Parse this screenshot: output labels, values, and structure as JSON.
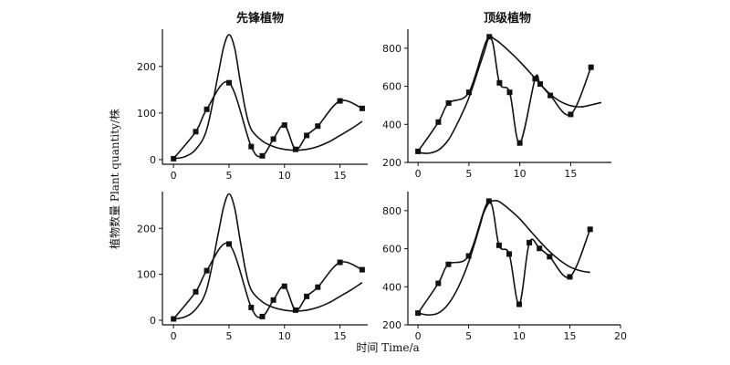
{
  "figure": {
    "ylabel": "植物数量  Plant quantity/株",
    "xlabel": "时间 Time/a"
  },
  "chart_data": [
    {
      "type": "line",
      "title": "先锋植物",
      "xlim": [
        -1,
        17.5
      ],
      "ylim": [
        -10,
        280
      ],
      "xticks": [
        0,
        5,
        10,
        15
      ],
      "yticks": [
        0,
        100,
        200
      ],
      "series": [
        {
          "style": "line-markers",
          "points": [
            [
              0,
              2
            ],
            [
              2,
              60
            ],
            [
              3,
              108
            ],
            [
              5,
              165
            ],
            [
              7,
              28
            ],
            [
              8,
              8
            ],
            [
              9,
              44
            ],
            [
              10,
              74
            ],
            [
              11,
              22
            ],
            [
              12,
              52
            ],
            [
              13,
              72
            ],
            [
              15,
              126
            ],
            [
              17,
              110
            ]
          ]
        },
        {
          "style": "smooth",
          "points": [
            [
              0,
              2
            ],
            [
              1,
              6
            ],
            [
              2,
              22
            ],
            [
              3,
              65
            ],
            [
              4,
              180
            ],
            [
              4.5,
              240
            ],
            [
              5,
              268
            ],
            [
              5.5,
              240
            ],
            [
              6,
              170
            ],
            [
              6.5,
              105
            ],
            [
              7,
              65
            ],
            [
              8,
              40
            ],
            [
              9,
              28
            ],
            [
              10,
              22
            ],
            [
              11,
              20
            ],
            [
              12,
              22
            ],
            [
              13,
              28
            ],
            [
              14,
              38
            ],
            [
              15,
              52
            ],
            [
              16,
              66
            ],
            [
              17,
              82
            ]
          ]
        }
      ]
    },
    {
      "type": "line",
      "title": "顶级植物",
      "xlim": [
        -1,
        19
      ],
      "ylim": [
        200,
        900
      ],
      "xticks": [
        0,
        5,
        10,
        15
      ],
      "yticks": [
        200,
        400,
        600,
        800
      ],
      "series": [
        {
          "style": "line-markers",
          "points": [
            [
              0,
              258
            ],
            [
              2,
              412
            ],
            [
              3,
              512
            ],
            [
              5,
              568
            ],
            [
              7,
              860
            ],
            [
              8,
              618
            ],
            [
              9,
              568
            ],
            [
              10,
              302
            ],
            [
              11.5,
              640
            ],
            [
              12,
              612
            ],
            [
              13,
              552
            ],
            [
              15,
              452
            ],
            [
              17,
              700
            ]
          ]
        },
        {
          "style": "smooth",
          "points": [
            [
              0,
              252
            ],
            [
              1,
              248
            ],
            [
              2,
              265
            ],
            [
              3,
              320
            ],
            [
              4,
              420
            ],
            [
              5,
              540
            ],
            [
              6,
              700
            ],
            [
              6.5,
              780
            ],
            [
              7,
              860
            ],
            [
              7.5,
              848
            ],
            [
              8,
              830
            ],
            [
              9,
              782
            ],
            [
              10,
              730
            ],
            [
              11,
              672
            ],
            [
              12,
              612
            ],
            [
              13,
              558
            ],
            [
              14,
              520
            ],
            [
              15,
              498
            ],
            [
              16,
              492
            ],
            [
              17,
              502
            ],
            [
              18,
              515
            ]
          ]
        }
      ]
    },
    {
      "type": "line",
      "title": "",
      "xlim": [
        -1,
        17.5
      ],
      "ylim": [
        -10,
        280
      ],
      "xticks": [
        0,
        5,
        10,
        15
      ],
      "yticks": [
        0,
        100,
        200
      ],
      "series": [
        {
          "style": "line-markers",
          "points": [
            [
              0,
              3
            ],
            [
              2,
              62
            ],
            [
              3,
              108
            ],
            [
              5,
              166
            ],
            [
              7,
              28
            ],
            [
              8,
              8
            ],
            [
              9,
              44
            ],
            [
              10,
              74
            ],
            [
              11,
              22
            ],
            [
              12,
              52
            ],
            [
              13,
              72
            ],
            [
              15,
              126
            ],
            [
              17,
              110
            ]
          ]
        },
        {
          "style": "smooth",
          "points": [
            [
              0,
              3
            ],
            [
              1,
              7
            ],
            [
              2,
              24
            ],
            [
              3,
              68
            ],
            [
              4,
              185
            ],
            [
              4.5,
              245
            ],
            [
              5,
              275
            ],
            [
              5.5,
              245
            ],
            [
              6,
              175
            ],
            [
              6.5,
              108
            ],
            [
              7,
              66
            ],
            [
              8,
              40
            ],
            [
              9,
              28
            ],
            [
              10,
              22
            ],
            [
              11,
              20
            ],
            [
              12,
              22
            ],
            [
              13,
              28
            ],
            [
              14,
              38
            ],
            [
              15,
              52
            ],
            [
              16,
              66
            ],
            [
              17,
              82
            ]
          ]
        }
      ]
    },
    {
      "type": "line",
      "title": "",
      "xlim": [
        -1,
        20
      ],
      "ylim": [
        200,
        900
      ],
      "xticks": [
        0,
        5,
        10,
        15,
        20
      ],
      "yticks": [
        200,
        400,
        600,
        800
      ],
      "series": [
        {
          "style": "line-markers",
          "points": [
            [
              0,
              262
            ],
            [
              2,
              418
            ],
            [
              3,
              518
            ],
            [
              5,
              562
            ],
            [
              7,
              850
            ],
            [
              8,
              618
            ],
            [
              9,
              572
            ],
            [
              10,
              308
            ],
            [
              11,
              632
            ],
            [
              12,
              602
            ],
            [
              13,
              558
            ],
            [
              15,
              452
            ],
            [
              17,
              702
            ]
          ]
        },
        {
          "style": "smooth",
          "points": [
            [
              0,
              262
            ],
            [
              1,
              252
            ],
            [
              2,
              262
            ],
            [
              3,
              310
            ],
            [
              4,
              400
            ],
            [
              5,
              530
            ],
            [
              6,
              700
            ],
            [
              6.5,
              790
            ],
            [
              7,
              840
            ],
            [
              7.5,
              852
            ],
            [
              8,
              848
            ],
            [
              9,
              808
            ],
            [
              10,
              760
            ],
            [
              11,
              700
            ],
            [
              12,
              640
            ],
            [
              13,
              585
            ],
            [
              14,
              540
            ],
            [
              15,
              505
            ],
            [
              16,
              485
            ],
            [
              17,
              475
            ]
          ]
        }
      ]
    }
  ]
}
